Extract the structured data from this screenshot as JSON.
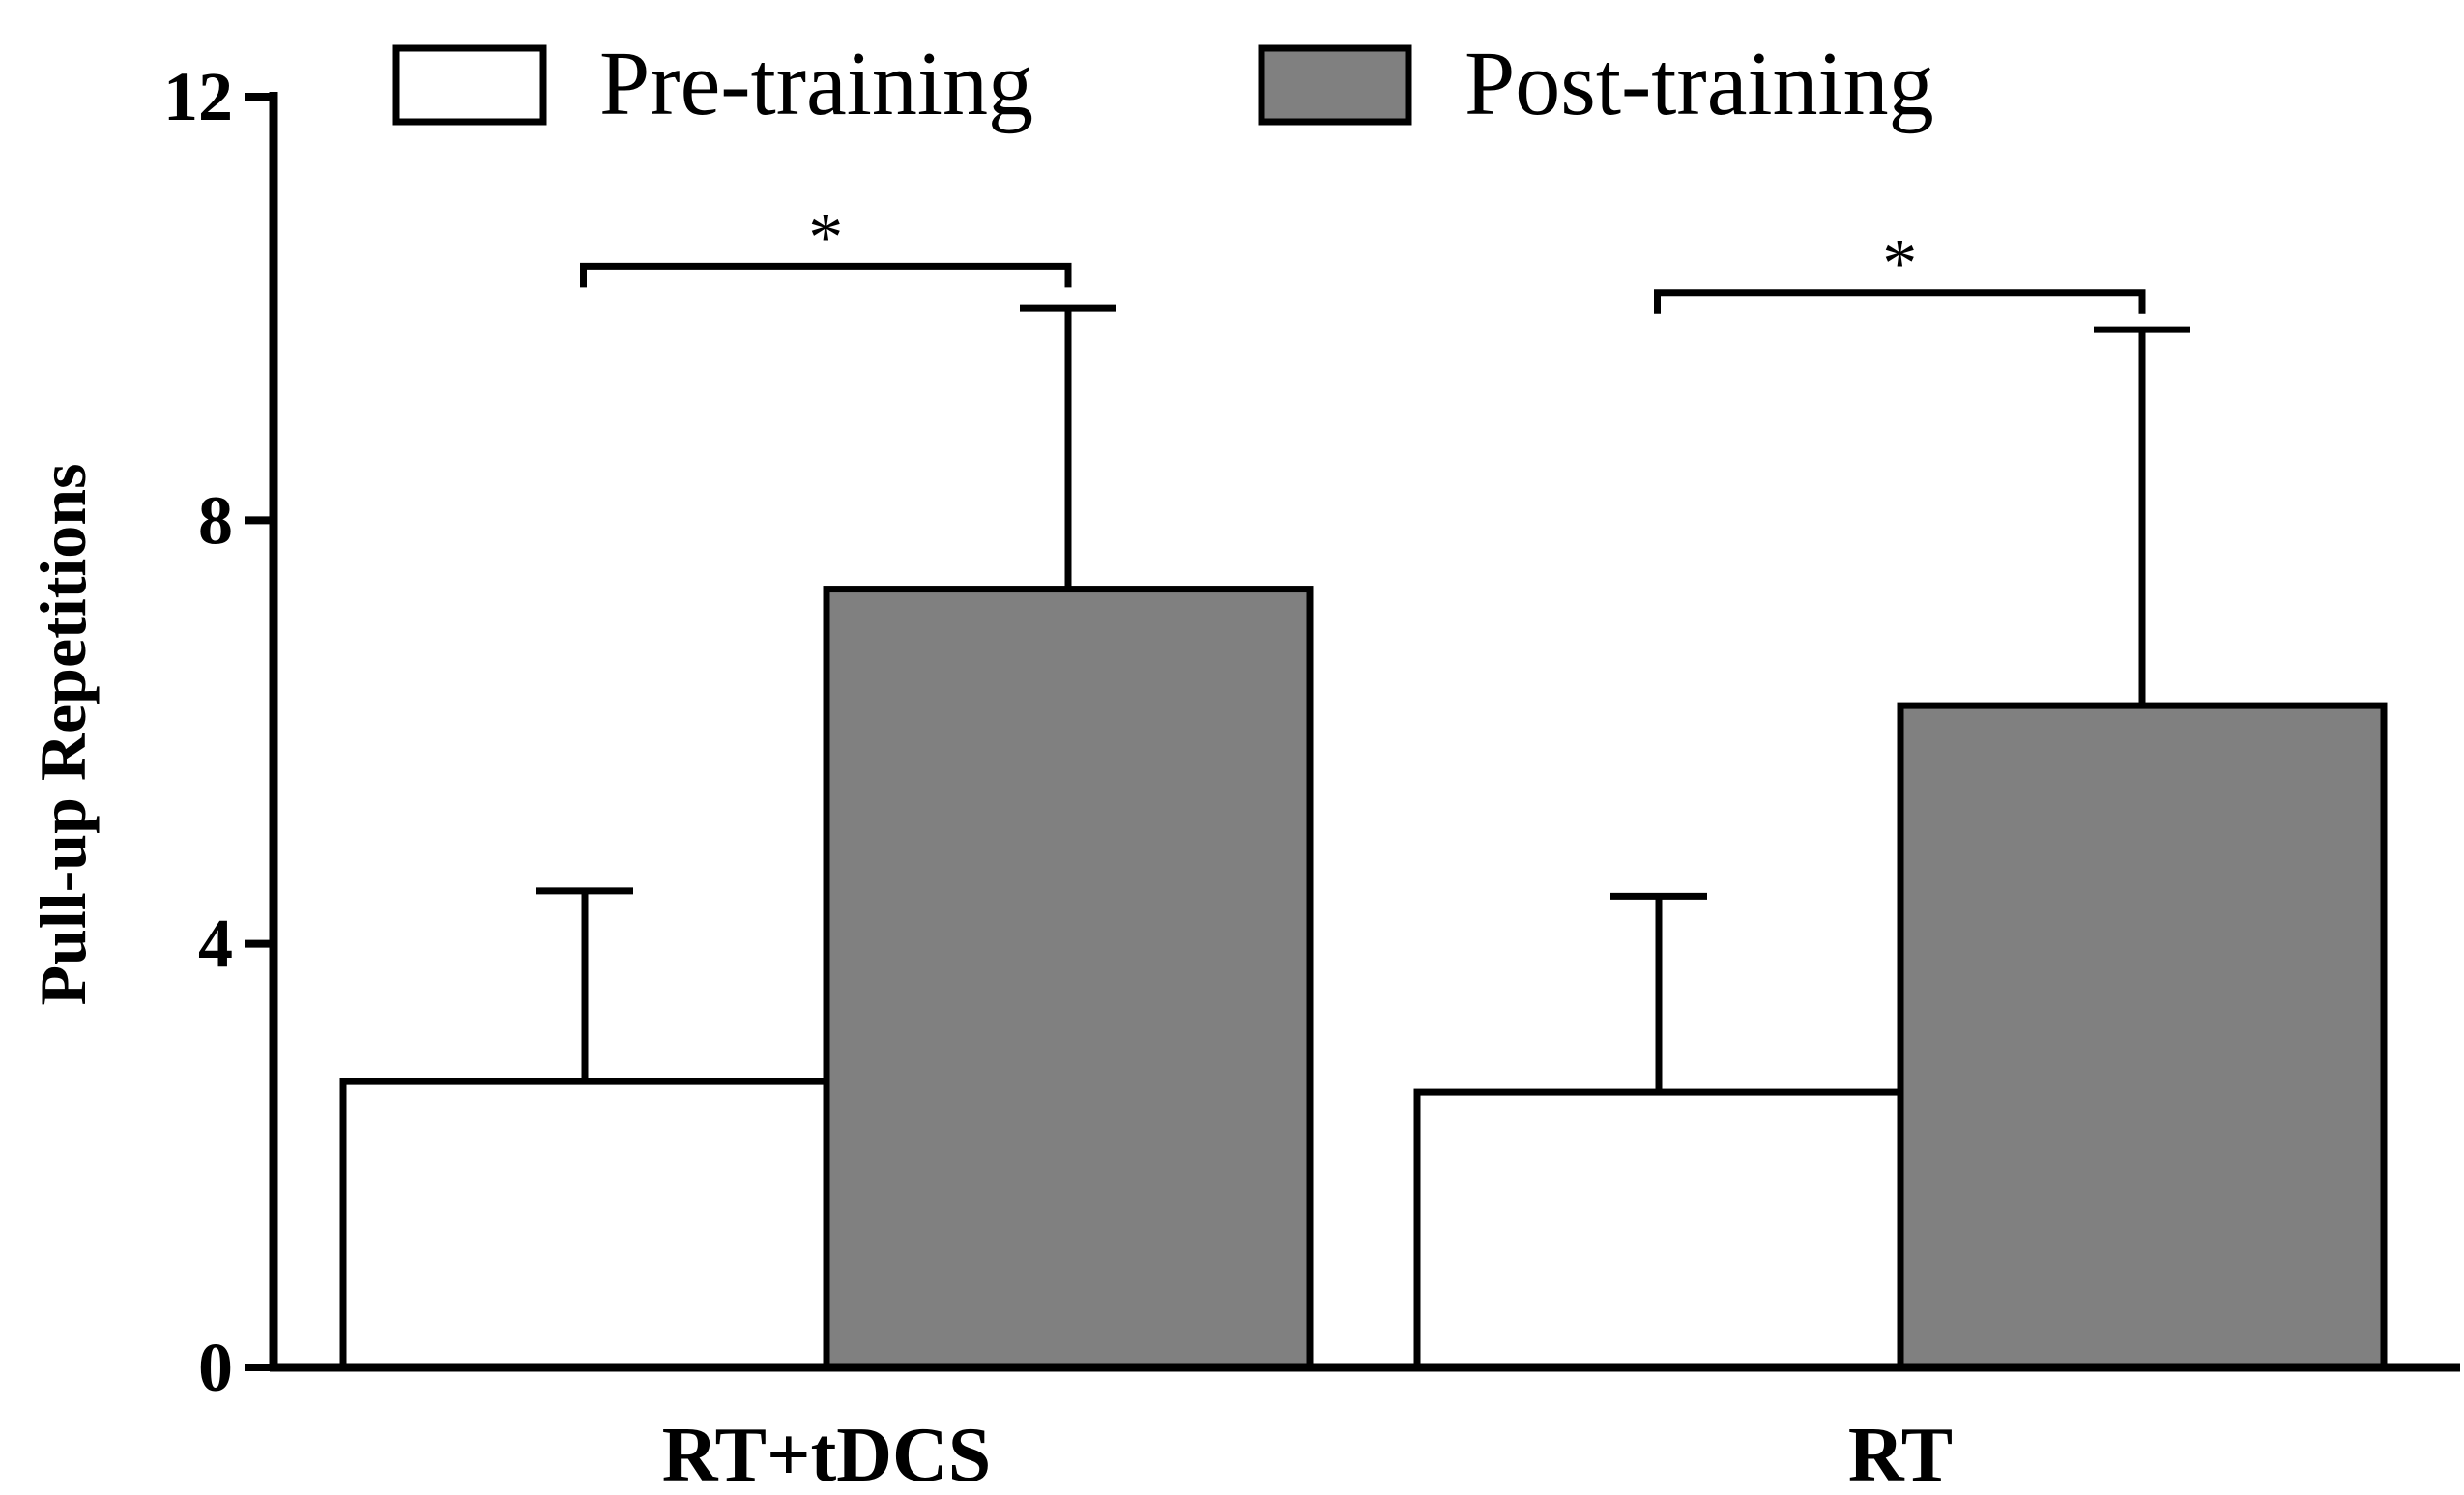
{
  "chart_data": {
    "type": "bar",
    "title": "",
    "xlabel": "",
    "ylabel": "Pull-up Repetitions",
    "ylim": [
      0,
      12
    ],
    "yticks": [
      0,
      4,
      8,
      12
    ],
    "ytick_labels": [
      "0",
      "4",
      "8",
      "12"
    ],
    "grid": false,
    "legend_position": "top",
    "categories": [
      "RT+tDCS",
      "RT"
    ],
    "series": [
      {
        "name": "Pre-training",
        "color": "#ffffff",
        "values": [
          2.7,
          2.6
        ],
        "error": [
          1.8,
          1.85
        ]
      },
      {
        "name": "Post-training",
        "color": "#808080",
        "values": [
          7.35,
          6.25
        ],
        "error": [
          2.65,
          3.55
        ]
      }
    ],
    "annotations": [
      {
        "label": "*",
        "category": "RT+tDCS",
        "level": 10.4
      },
      {
        "label": "*",
        "category": "RT",
        "level": 10.15
      }
    ]
  }
}
